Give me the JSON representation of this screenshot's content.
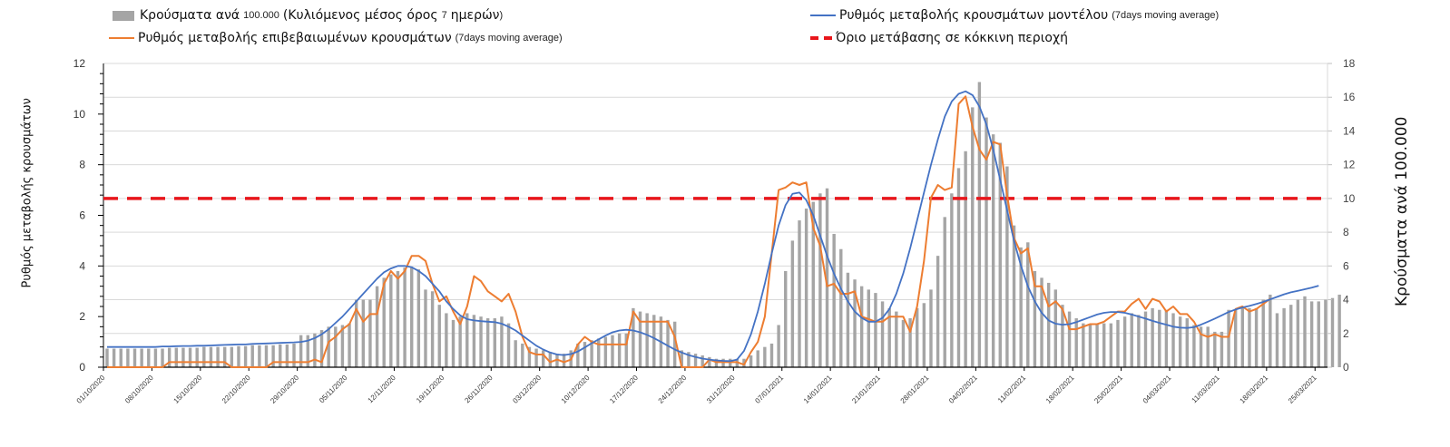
{
  "colors": {
    "bars": "#a5a5a5",
    "model_line": "#4472c4",
    "confirmed_line": "#ed7d31",
    "threshold_line": "#e8161b",
    "grid": "#d9d9d9"
  },
  "legend": {
    "bars": {
      "main": "Κρούσματα ανά",
      "small1": "100.000",
      "main2": "(Κυλιόμενος μέσος όρος",
      "small2": "7",
      "main3": "ημερών",
      "small3": ")"
    },
    "confirmed": {
      "main": "Ρυθμός μεταβολής επιβεβαιωμένων κρουσμάτων",
      "small": "(7days moving average)"
    },
    "model": {
      "main": "Ρυθμός μεταβολής κρουσμάτων μοντέλου",
      "small": "(7days moving average)"
    },
    "threshold": {
      "main": "Όριο μετάβασης σε κόκκινη περιοχή"
    }
  },
  "chart_data": {
    "type": "bar+line",
    "start_date": "01/10/2020",
    "x_tick_labels": [
      "01/10/2020",
      "08/10/2020",
      "15/10/2020",
      "22/10/2020",
      "29/10/2020",
      "05/11/2020",
      "12/11/2020",
      "19/11/2020",
      "26/11/2020",
      "03/12/2020",
      "10/12/2020",
      "17/12/2020",
      "24/12/2020",
      "31/12/2020",
      "07/01/2021",
      "14/01/2021",
      "21/01/2021",
      "28/01/2021",
      "04/02/2021",
      "11/02/2021",
      "18/02/2021",
      "25/02/2021",
      "04/03/2021",
      "11/03/2021",
      "18/03/2021",
      "25/03/2021"
    ],
    "ylabel_left": "Ρυθμός μεταβολής κρουσμάτων",
    "ylabel_right": "Κρούσματα ανά 100.000",
    "ylim_left": [
      0,
      12
    ],
    "yticks_left": [
      "0",
      "2",
      "4",
      "6",
      "8",
      "10",
      "12"
    ],
    "ylim_right": [
      0,
      18
    ],
    "yticks_right": [
      "0",
      "2",
      "4",
      "6",
      "8",
      "10",
      "12",
      "14",
      "16",
      "18"
    ],
    "grid": true,
    "legend_position": "top",
    "threshold_right_axis": 10,
    "series": [
      {
        "name": "Κρούσματα ανά 100.000 (Κυλιόμενος μέσος όρος 7 ημερών)",
        "type": "bar",
        "axis": "right",
        "values": [
          1.1,
          1.1,
          1.1,
          1.1,
          1.1,
          1.1,
          1.1,
          1.1,
          1.1,
          1.15,
          1.15,
          1.15,
          1.15,
          1.15,
          1.2,
          1.2,
          1.2,
          1.2,
          1.2,
          1.25,
          1.25,
          1.3,
          1.3,
          1.3,
          1.3,
          1.35,
          1.35,
          1.4,
          1.9,
          1.9,
          2.0,
          2.2,
          2.4,
          2.4,
          2.5,
          2.6,
          4.0,
          4.0,
          4.0,
          4.8,
          5.3,
          5.5,
          5.7,
          5.9,
          5.9,
          5.8,
          4.6,
          4.5,
          3.7,
          3.2,
          2.8,
          3.0,
          3.2,
          3.1,
          3.0,
          2.9,
          2.9,
          3.0,
          2.6,
          1.6,
          1.4,
          1.2,
          1.1,
          1.0,
          0.9,
          0.8,
          0.8,
          1.0,
          1.4,
          1.5,
          1.6,
          1.7,
          1.8,
          1.9,
          2.0,
          2.0,
          3.5,
          3.3,
          3.2,
          3.1,
          3.0,
          2.8,
          2.7,
          1.0,
          0.9,
          0.8,
          0.7,
          0.6,
          0.5,
          0.5,
          0.5,
          0.5,
          0.5,
          0.7,
          1.0,
          1.2,
          1.4,
          2.5,
          5.7,
          7.5,
          8.7,
          9.4,
          9.8,
          10.3,
          10.6,
          7.9,
          7.0,
          5.6,
          5.2,
          4.8,
          4.6,
          4.4,
          3.9,
          3.5,
          3.3,
          2.8,
          2.9,
          3.5,
          3.8,
          4.6,
          6.6,
          8.9,
          10.3,
          11.8,
          12.8,
          15.4,
          16.9,
          14.8,
          13.8,
          13.3,
          11.9,
          8.4,
          7.1,
          7.4,
          5.7,
          5.3,
          5.0,
          4.6,
          3.7,
          3.3,
          2.9,
          2.6,
          2.5,
          2.6,
          2.6,
          2.6,
          2.8,
          3.0,
          3.2,
          3.1,
          3.3,
          3.5,
          3.4,
          3.4,
          3.2,
          3.0,
          2.9,
          2.5,
          2.4,
          2.4,
          2.1,
          2.1,
          3.4,
          3.4,
          3.6,
          3.5,
          3.5,
          4.0,
          4.3,
          3.2,
          3.5,
          3.7,
          4.0,
          4.2,
          3.9,
          3.9,
          4.0,
          4.1,
          4.3
        ]
      },
      {
        "name": "Ρυθμός μεταβολής επιβεβαιωμένων κρουσμάτων (7days moving average)",
        "type": "line",
        "axis": "left",
        "values": [
          0,
          0,
          0,
          0,
          0,
          0,
          0,
          0,
          0,
          0.2,
          0.2,
          0.2,
          0.2,
          0.2,
          0.2,
          0.2,
          0.2,
          0.2,
          0,
          0,
          0,
          0,
          0,
          0,
          0.2,
          0.2,
          0.2,
          0.2,
          0.2,
          0.2,
          0.3,
          0.2,
          1.0,
          1.2,
          1.5,
          1.7,
          2.3,
          1.8,
          2.1,
          2.1,
          3.3,
          3.8,
          3.5,
          3.8,
          4.4,
          4.4,
          4.2,
          3.3,
          2.6,
          2.8,
          2.2,
          1.7,
          2.4,
          3.6,
          3.4,
          3.0,
          2.8,
          2.6,
          2.9,
          2.2,
          1.2,
          0.6,
          0.5,
          0.5,
          0.2,
          0.3,
          0.2,
          0.3,
          0.9,
          1.2,
          1.0,
          0.9,
          0.9,
          0.9,
          0.9,
          0.9,
          2.2,
          1.8,
          1.8,
          1.8,
          1.8,
          1.8,
          1.2,
          0,
          0,
          0,
          0,
          0.3,
          0.2,
          0.2,
          0.2,
          0.2,
          0.1,
          0.6,
          1.0,
          2.0,
          4.5,
          7.0,
          7.1,
          7.3,
          7.2,
          7.3,
          5.5,
          4.8,
          3.2,
          3.3,
          2.9,
          2.9,
          3.0,
          2.0,
          1.9,
          1.8,
          1.8,
          2.0,
          2.0,
          2.0,
          1.4,
          2.4,
          4.2,
          6.7,
          7.2,
          7.0,
          7.1,
          10.4,
          10.7,
          9.5,
          8.6,
          8.2,
          8.9,
          8.8,
          6.8,
          5.1,
          4.5,
          4.7,
          3.2,
          3.2,
          2.4,
          2.6,
          2.3,
          1.5,
          1.5,
          1.6,
          1.7,
          1.7,
          1.8,
          2.0,
          2.2,
          2.2,
          2.5,
          2.7,
          2.3,
          2.7,
          2.6,
          2.2,
          2.4,
          2.1,
          2.1,
          1.8,
          1.3,
          1.2,
          1.3,
          1.2,
          1.2,
          2.3,
          2.4,
          2.2,
          2.3,
          2.5,
          2.7
        ]
      },
      {
        "name": "Ρυθμός μεταβολής κρουσμάτων μοντέλου (7days moving average)",
        "type": "line",
        "axis": "left",
        "values": [
          0.8,
          0.8,
          0.8,
          0.8,
          0.8,
          0.8,
          0.8,
          0.8,
          0.82,
          0.82,
          0.83,
          0.84,
          0.84,
          0.85,
          0.85,
          0.86,
          0.87,
          0.88,
          0.89,
          0.9,
          0.9,
          0.92,
          0.93,
          0.94,
          0.95,
          0.96,
          0.97,
          0.98,
          1.0,
          1.05,
          1.15,
          1.3,
          1.5,
          1.75,
          2.0,
          2.3,
          2.6,
          2.9,
          3.2,
          3.5,
          3.75,
          3.9,
          4.0,
          4.0,
          3.95,
          3.8,
          3.6,
          3.3,
          3.0,
          2.6,
          2.3,
          2.05,
          1.9,
          1.85,
          1.82,
          1.8,
          1.78,
          1.72,
          1.6,
          1.45,
          1.25,
          1.05,
          0.85,
          0.7,
          0.58,
          0.5,
          0.48,
          0.52,
          0.62,
          0.78,
          0.95,
          1.1,
          1.25,
          1.38,
          1.45,
          1.48,
          1.45,
          1.38,
          1.28,
          1.15,
          1.0,
          0.85,
          0.7,
          0.58,
          0.48,
          0.4,
          0.34,
          0.3,
          0.27,
          0.25,
          0.24,
          0.3,
          0.65,
          1.3,
          2.2,
          3.3,
          4.5,
          5.6,
          6.4,
          6.85,
          6.9,
          6.6,
          6.0,
          5.2,
          4.4,
          3.7,
          3.1,
          2.6,
          2.2,
          1.95,
          1.8,
          1.8,
          1.95,
          2.3,
          2.9,
          3.7,
          4.7,
          5.8,
          6.9,
          8.0,
          9.0,
          9.9,
          10.5,
          10.8,
          10.9,
          10.75,
          10.3,
          9.6,
          8.6,
          7.4,
          6.2,
          5.0,
          4.0,
          3.2,
          2.6,
          2.15,
          1.85,
          1.72,
          1.68,
          1.7,
          1.78,
          1.88,
          1.98,
          2.08,
          2.15,
          2.18,
          2.18,
          2.15,
          2.08,
          2.0,
          1.92,
          1.83,
          1.75,
          1.68,
          1.6,
          1.56,
          1.55,
          1.58,
          1.68,
          1.8,
          1.92,
          2.05,
          2.18,
          2.28,
          2.36,
          2.42,
          2.5,
          2.58,
          2.68,
          2.78,
          2.88,
          2.96,
          3.02,
          3.08,
          3.14,
          3.22
        ]
      }
    ]
  }
}
